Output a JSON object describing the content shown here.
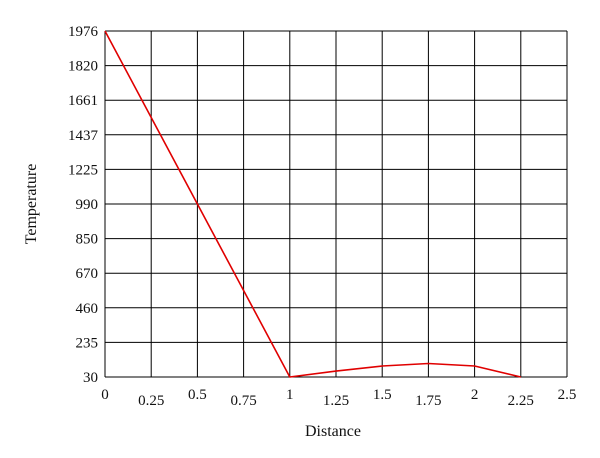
{
  "chart_data": {
    "type": "line",
    "xlabel": "Distance",
    "ylabel": "Temperature",
    "x_ticks": [
      "0",
      "0.25",
      "0.5",
      "0.75",
      "1",
      "1.25",
      "1.5",
      "1.75",
      "2",
      "2.25",
      "2.5"
    ],
    "y_ticks": [
      "1976",
      "1820",
      "1661",
      "1437",
      "1225",
      "990",
      "850",
      "670",
      "460",
      "235",
      "30"
    ],
    "xlim": [
      0,
      2.5
    ],
    "y_scale": "categorical-evenly-spaced (each labeled value one grid row)",
    "grid": true,
    "line_color": "#e00000",
    "series": [
      {
        "x": [
          0,
          1,
          1.25,
          1.5,
          1.75,
          2,
          2.25
        ],
        "y": [
          1976,
          30,
          65,
          95,
          110,
          95,
          30
        ]
      }
    ]
  }
}
